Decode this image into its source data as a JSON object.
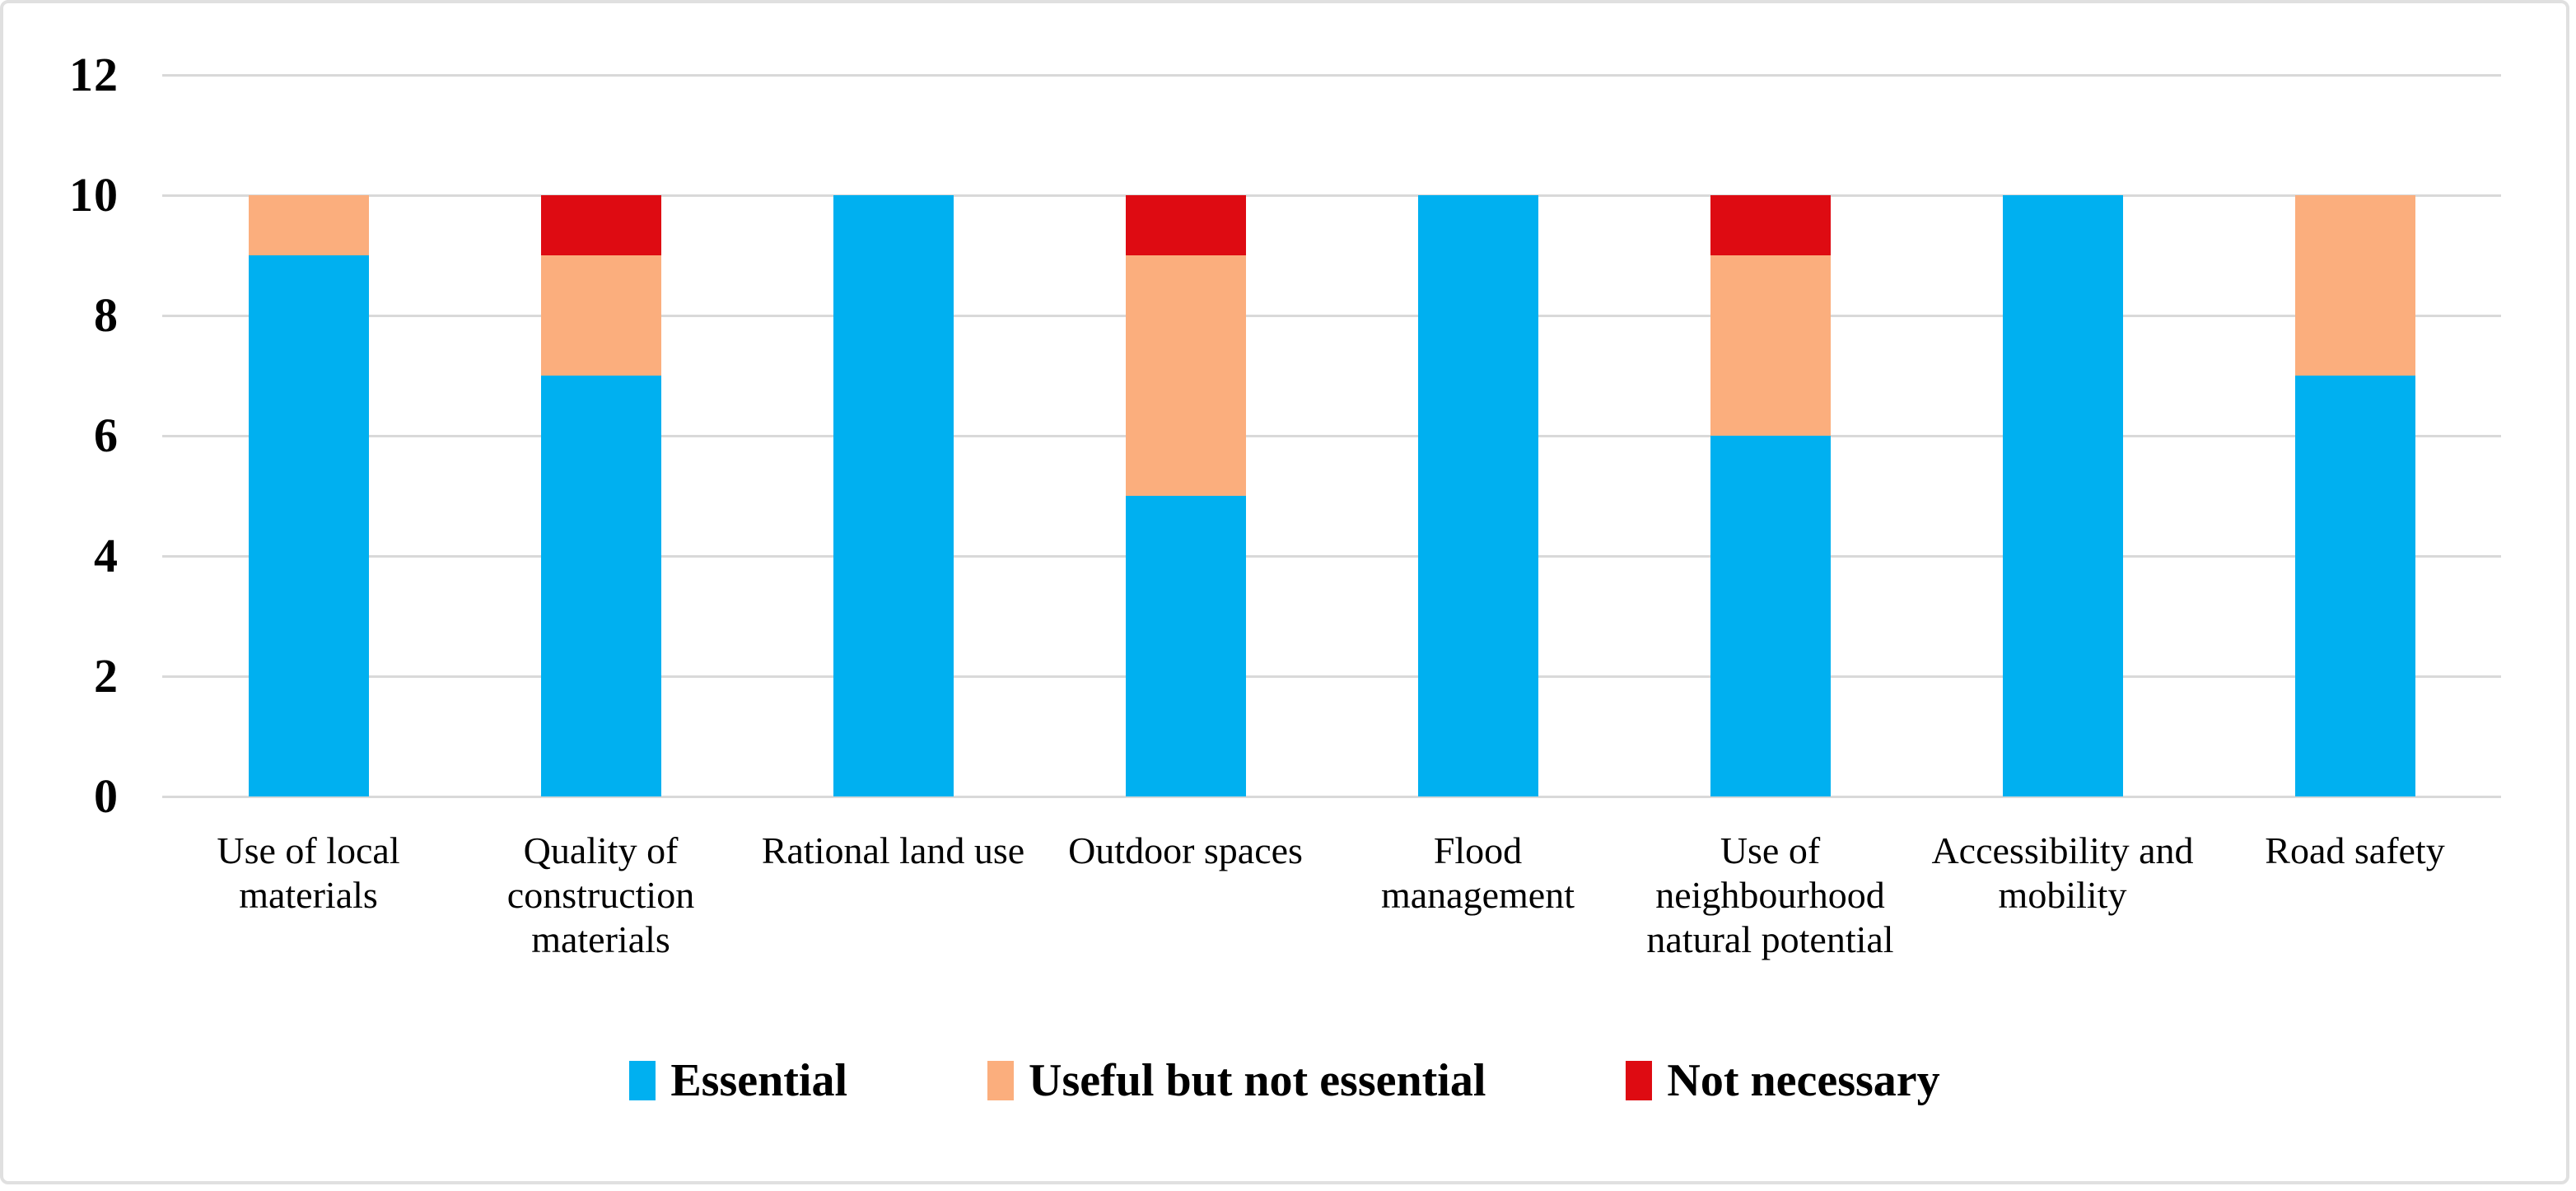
{
  "chart_data": {
    "type": "bar",
    "stacked": true,
    "title": "",
    "xlabel": "",
    "ylabel": "",
    "categories": [
      "Use of local materials",
      "Quality of construction materials",
      "Rational land use",
      "Outdoor spaces",
      "Flood management",
      "Use of neighbourhood natural potential",
      "Accessibility and mobility",
      "Road safety"
    ],
    "series": [
      {
        "name": "Essential",
        "color": "#00B0F0",
        "values": [
          9,
          7,
          10,
          5,
          10,
          6,
          10,
          7
        ]
      },
      {
        "name": "Useful but not essential",
        "color": "#FBAE7D",
        "values": [
          1,
          2,
          0,
          4,
          0,
          3,
          0,
          3
        ]
      },
      {
        "name": "Not necessary",
        "color": "#DE0B12",
        "values": [
          0,
          1,
          0,
          1,
          0,
          1,
          0,
          0
        ]
      }
    ],
    "ylim": [
      0,
      12
    ],
    "yticks": [
      0,
      2,
      4,
      6,
      8,
      10,
      12
    ],
    "grid": "horizontal",
    "legend_position": "bottom"
  },
  "colors": {
    "gridline": "#D9D9D9",
    "frame_border": "#E0E0E0",
    "background": "#FFFFFF",
    "text": "#000000"
  }
}
